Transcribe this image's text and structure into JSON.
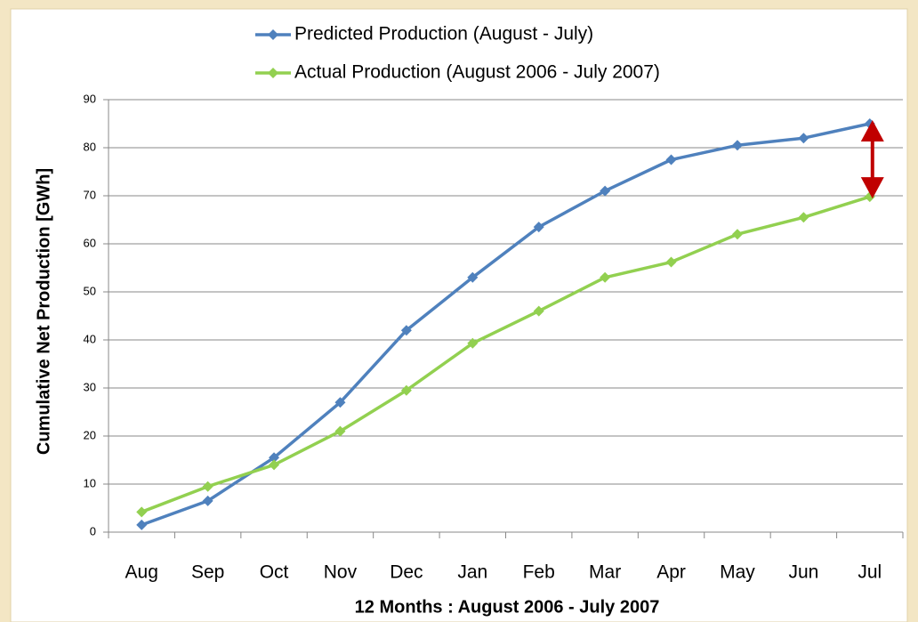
{
  "chart_data": {
    "type": "line",
    "categories": [
      "Aug",
      "Sep",
      "Oct",
      "Nov",
      "Dec",
      "Jan",
      "Feb",
      "Mar",
      "Apr",
      "May",
      "Jun",
      "Jul"
    ],
    "series": [
      {
        "name": "Predicted Production (August - July)",
        "color": "#4f81bd",
        "values": [
          1.5,
          6.5,
          15.5,
          27,
          42,
          53,
          63.5,
          71,
          77.5,
          80.5,
          82,
          85
        ]
      },
      {
        "name": "Actual Production (August 2006 - July 2007)",
        "color": "#92d050",
        "values": [
          4.2,
          9.5,
          14,
          21,
          29.5,
          39.3,
          46,
          53,
          56.2,
          62,
          65.5,
          69.8
        ]
      }
    ],
    "x_label": "12 Months :  August 2006 - July 2007",
    "y_label": "Cumulative Net Production [GWh]",
    "ylim": [
      0,
      90
    ],
    "yticks": [
      0,
      10,
      20,
      30,
      40,
      50,
      60,
      70,
      80,
      90
    ],
    "grid": true,
    "legend": "top",
    "annotation_color": "#c00000"
  }
}
